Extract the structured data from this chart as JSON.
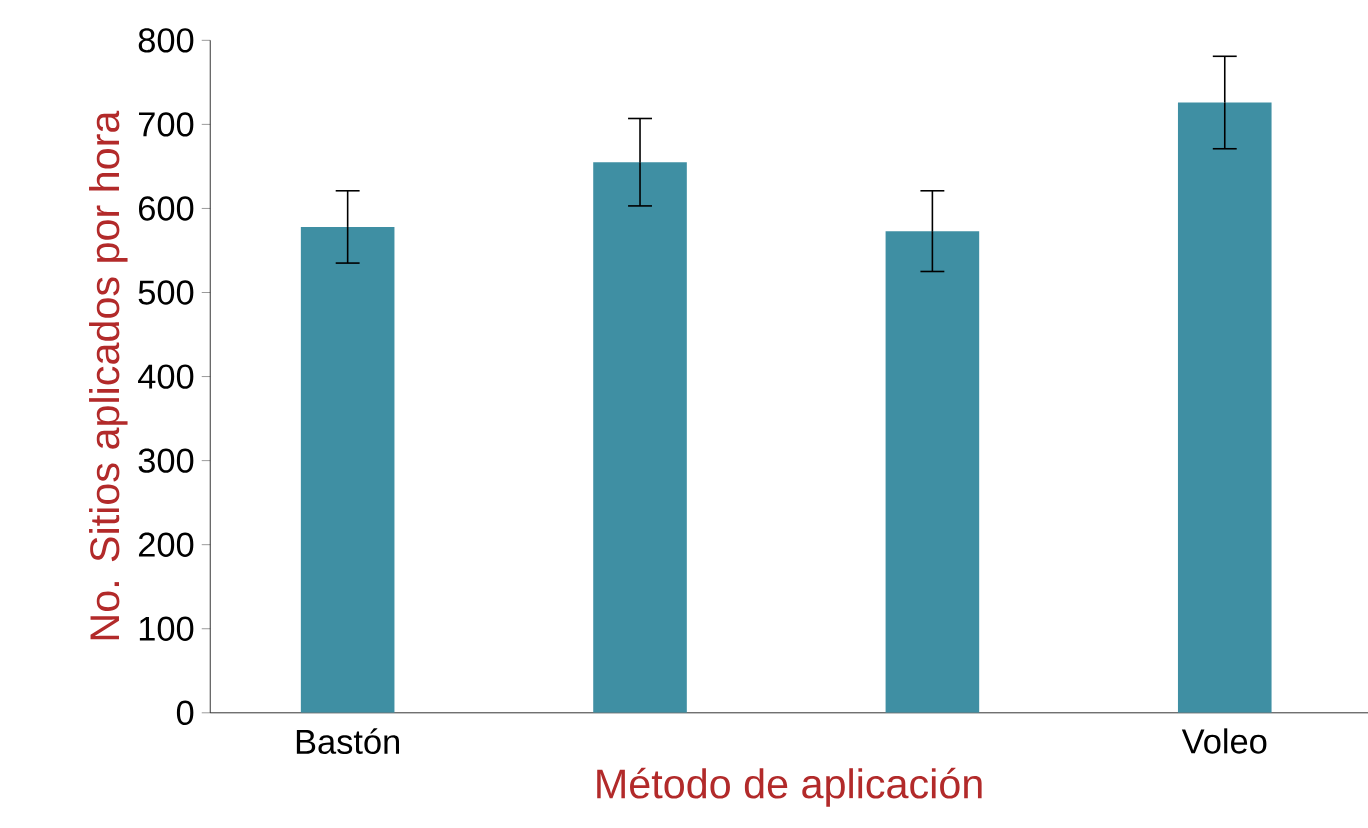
{
  "chart_data": {
    "type": "bar",
    "xlabel": "Método de aplicación",
    "ylabel": "No. Sitios aplicados por hora",
    "categories": [
      "Bastón",
      null,
      null,
      "Voleo"
    ],
    "values": [
      578,
      655,
      573,
      726
    ],
    "errors": [
      43,
      52,
      48,
      55
    ],
    "color": "#3f8fa3",
    "ylim": [
      0,
      800
    ],
    "yticks": [
      0,
      100,
      200,
      300,
      400,
      500,
      600,
      700,
      800
    ],
    "grid": false
  }
}
